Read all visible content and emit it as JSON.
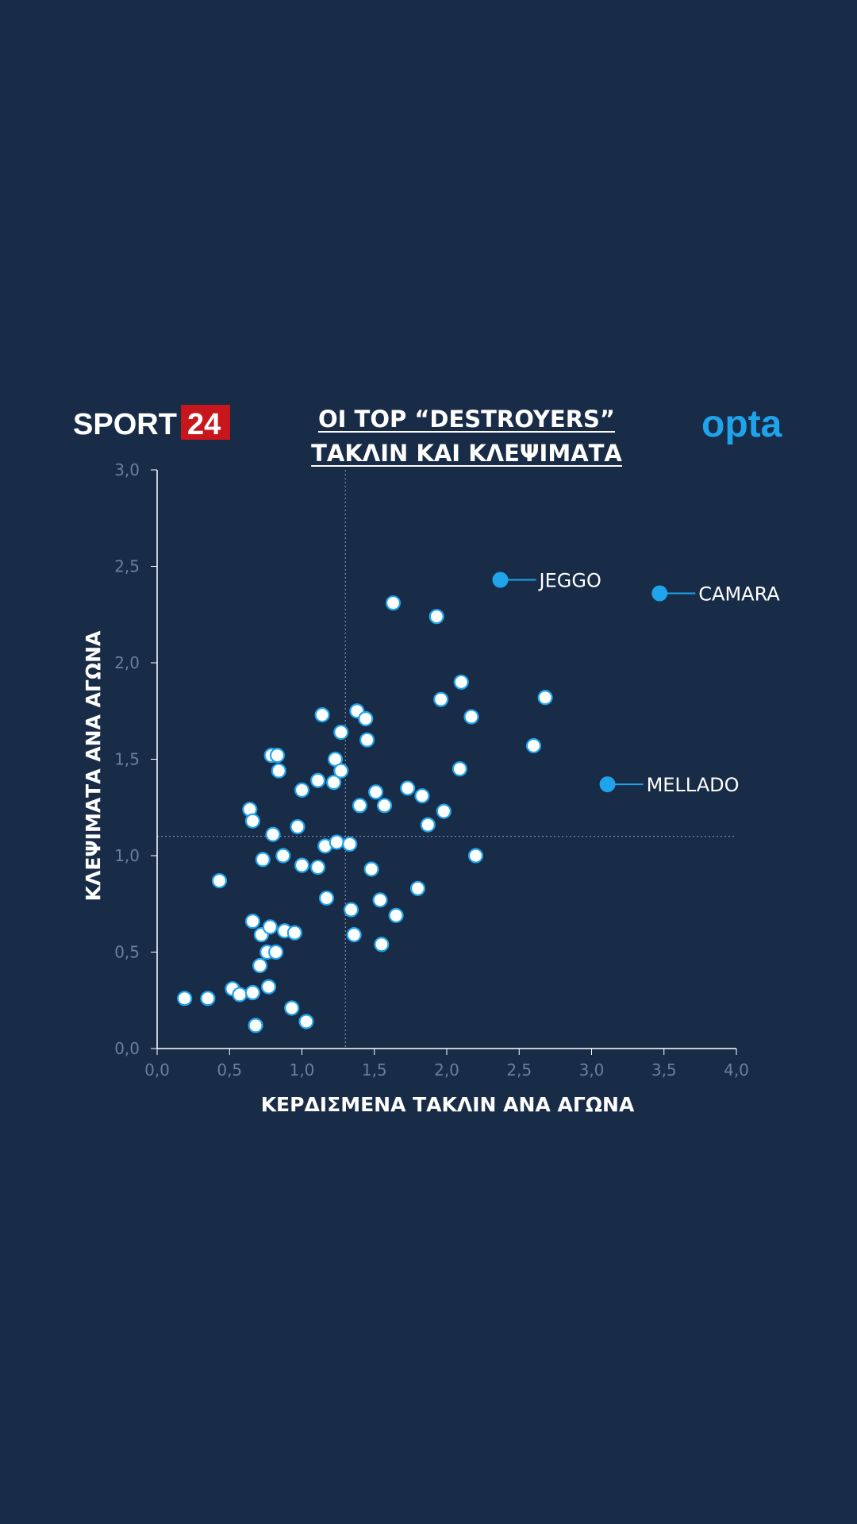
{
  "brand": {
    "logo_left_text": "SPORT",
    "logo_left_number": "24",
    "logo_left_number_bg": "#c8161d",
    "logo_right_text": "opta",
    "logo_right_color": "#1fa3ea"
  },
  "colors": {
    "background": "#182c48",
    "point_fill": "#ffffff",
    "point_stroke": "#1fa3ea",
    "highlight": "#1fa3ea",
    "tick_text": "#6b7f9c",
    "axis_line": "#ffffff"
  },
  "chart_data": {
    "type": "scatter",
    "title_line1": "ΟΙ TOP “DESTROYERS”",
    "title_line2": "ΤΑΚΛΙΝ ΚΑΙ ΚΛΕΨΙΜΑΤΑ",
    "xlabel": "ΚΕΡΔΙΣΜΕΝΑ ΤΑΚΛΙΝ ΑΝΑ ΑΓΩΝΑ",
    "ylabel": "ΚΛΕΨΙΜΑΤΑ ΑΝΑ ΑΓΩΝΑ",
    "xlim": [
      0,
      4.0
    ],
    "ylim": [
      0,
      3.0
    ],
    "x_ticks": [
      "0,0",
      "0,5",
      "1,0",
      "1,5",
      "2,0",
      "2,5",
      "3,0",
      "3,5",
      "4,0"
    ],
    "y_ticks": [
      "0,0",
      "0,5",
      "1,0",
      "1,5",
      "2,0",
      "2,5",
      "3,0"
    ],
    "reference_x": 1.3,
    "reference_y": 1.1,
    "highlights": [
      {
        "label": "JEGGO",
        "x": 2.37,
        "y": 2.43
      },
      {
        "label": "CAMARA",
        "x": 3.47,
        "y": 2.36
      },
      {
        "label": "MELLADO",
        "x": 3.11,
        "y": 1.37
      }
    ],
    "points": [
      [
        0.19,
        0.26
      ],
      [
        0.35,
        0.26
      ],
      [
        0.43,
        0.87
      ],
      [
        0.52,
        0.31
      ],
      [
        0.57,
        0.28
      ],
      [
        0.66,
        0.29
      ],
      [
        0.68,
        0.12
      ],
      [
        0.71,
        0.43
      ],
      [
        0.66,
        0.66
      ],
      [
        0.72,
        0.59
      ],
      [
        0.76,
        0.5
      ],
      [
        0.77,
        0.32
      ],
      [
        0.78,
        0.63
      ],
      [
        0.82,
        0.5
      ],
      [
        0.88,
        0.61
      ],
      [
        0.95,
        0.6
      ],
      [
        0.93,
        0.21
      ],
      [
        1.03,
        0.14
      ],
      [
        0.73,
        0.98
      ],
      [
        0.87,
        1.0
      ],
      [
        1.0,
        0.95
      ],
      [
        1.11,
        0.94
      ],
      [
        0.64,
        1.24
      ],
      [
        0.66,
        1.18
      ],
      [
        0.8,
        1.11
      ],
      [
        0.97,
        1.15
      ],
      [
        0.84,
        1.44
      ],
      [
        0.79,
        1.52
      ],
      [
        0.83,
        1.52
      ],
      [
        1.0,
        1.34
      ],
      [
        1.11,
        1.39
      ],
      [
        1.16,
        1.05
      ],
      [
        1.17,
        0.78
      ],
      [
        1.14,
        1.73
      ],
      [
        1.22,
        1.38
      ],
      [
        1.23,
        1.5
      ],
      [
        1.27,
        1.44
      ],
      [
        1.24,
        1.07
      ],
      [
        1.27,
        1.64
      ],
      [
        1.33,
        1.06
      ],
      [
        1.34,
        0.72
      ],
      [
        1.36,
        0.59
      ],
      [
        1.38,
        1.75
      ],
      [
        1.4,
        1.26
      ],
      [
        1.44,
        1.71
      ],
      [
        1.45,
        1.6
      ],
      [
        1.48,
        0.93
      ],
      [
        1.51,
        1.33
      ],
      [
        1.54,
        0.77
      ],
      [
        1.55,
        0.54
      ],
      [
        1.57,
        1.26
      ],
      [
        1.63,
        2.31
      ],
      [
        1.65,
        0.69
      ],
      [
        1.73,
        1.35
      ],
      [
        1.8,
        0.83
      ],
      [
        1.83,
        1.31
      ],
      [
        1.87,
        1.16
      ],
      [
        1.93,
        2.24
      ],
      [
        1.96,
        1.81
      ],
      [
        1.98,
        1.23
      ],
      [
        2.09,
        1.45
      ],
      [
        2.1,
        1.9
      ],
      [
        2.17,
        1.72
      ],
      [
        2.2,
        1.0
      ],
      [
        2.6,
        1.57
      ],
      [
        2.68,
        1.82
      ]
    ]
  }
}
